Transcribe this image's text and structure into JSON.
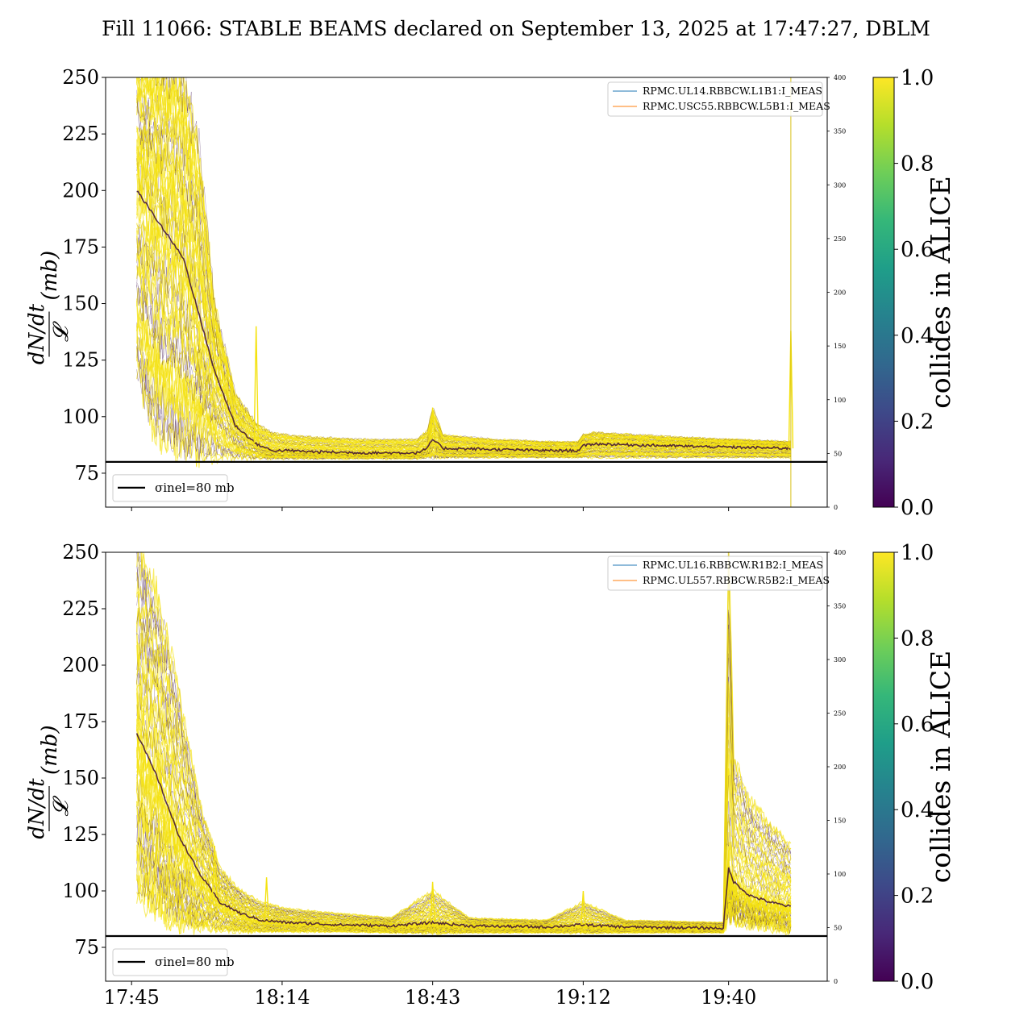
{
  "title": "Fill 11066: STABLE BEAMS declared on September 13, 2025 at 17:47:27, DBLM",
  "colors": {
    "viridis": [
      "#440154",
      "#482878",
      "#3e4989",
      "#31688e",
      "#26828e",
      "#1f9e89",
      "#35b779",
      "#6ece58",
      "#b5de2b",
      "#fde725"
    ],
    "collide_hi": "#f4e20f",
    "collide_lo": "#3b0f4f",
    "dark_core": "#3a0b3a",
    "legend_blue": "#1f77b4",
    "legend_orange": "#ff7f0e",
    "current_trace": "#d8c21a",
    "threshold": "#000000"
  },
  "y_axis_label": {
    "numerator": "dN/dt",
    "denominator": "𝓛",
    "unit": "(mb)"
  },
  "colorbar": {
    "label": "collides in ALICE",
    "ticks": [
      "0.0",
      "0.2",
      "0.4",
      "0.6",
      "0.8",
      "1.0"
    ],
    "range": [
      0,
      1
    ]
  },
  "chart_data": [
    {
      "type": "line",
      "panel": "top",
      "x_ticks": [
        "17:45",
        "18:14",
        "18:43",
        "19:12",
        "19:40"
      ],
      "x_range": [
        "17:40",
        "19:59"
      ],
      "y_left_ticks": [
        "75",
        "100",
        "125",
        "150",
        "175",
        "200",
        "225",
        "250"
      ],
      "ylim_left": [
        60,
        250
      ],
      "y_right_ticks": [
        "0",
        "50",
        "100",
        "150",
        "200",
        "250",
        "300",
        "350",
        "400"
      ],
      "ylim_right": [
        0,
        400
      ],
      "legend_entries": [
        {
          "label": "RPMC.UL14.RBBCW.L1B1:I_MEAS",
          "color": "#1f77b4"
        },
        {
          "label": "RPMC.USC55.RBBCW.L5B1:I_MEAS",
          "color": "#ff7f0e"
        }
      ],
      "threshold": {
        "value": 80,
        "label": "σinel=80 mb"
      },
      "collision_rate_band": {
        "times": [
          "17:46",
          "17:49",
          "17:52",
          "17:55",
          "17:58",
          "18:01",
          "18:05",
          "18:09",
          "18:12",
          "18:15",
          "18:20",
          "18:30",
          "18:40",
          "18:42",
          "18:43",
          "18:45",
          "18:55",
          "19:05",
          "19:11",
          "19:12",
          "19:14",
          "19:30",
          "19:40",
          "19:52"
        ],
        "upper": [
          265,
          260,
          255,
          250,
          220,
          150,
          110,
          97,
          93,
          92,
          91,
          90,
          90,
          94,
          104,
          92,
          90,
          89,
          89,
          92,
          93,
          91,
          90,
          89
        ],
        "median": [
          200,
          190,
          180,
          170,
          145,
          120,
          96,
          88,
          85,
          85,
          84.5,
          84,
          84,
          86,
          90,
          86,
          85.5,
          85,
          85,
          87,
          88,
          87,
          86.5,
          86
        ],
        "lower": [
          120,
          95,
          88,
          86,
          84,
          83,
          82,
          81.5,
          81.5,
          81.5,
          81.5,
          81.5,
          81.5,
          82,
          82,
          82,
          82,
          82,
          82,
          82,
          82,
          82,
          82,
          82
        ],
        "spikes": [
          {
            "time": "18:09",
            "value": 140
          },
          {
            "time": "18:43",
            "value": 104
          },
          {
            "time": "19:52",
            "value": 138
          }
        ]
      },
      "current_trace": {
        "times": [
          "17:45",
          "19:51",
          "19:52",
          "19:52"
        ],
        "values": [
          0,
          0,
          0,
          400
        ]
      }
    },
    {
      "type": "line",
      "panel": "bottom",
      "x_ticks": [
        "17:45",
        "18:14",
        "18:43",
        "19:12",
        "19:40"
      ],
      "x_range": [
        "17:40",
        "19:59"
      ],
      "y_left_ticks": [
        "75",
        "100",
        "125",
        "150",
        "175",
        "200",
        "225",
        "250"
      ],
      "ylim_left": [
        60,
        250
      ],
      "y_right_ticks": [
        "0",
        "50",
        "100",
        "150",
        "200",
        "250",
        "300",
        "350",
        "400"
      ],
      "ylim_right": [
        0,
        400
      ],
      "legend_entries": [
        {
          "label": "RPMC.UL16.RBBCW.R1B2:I_MEAS",
          "color": "#1f77b4"
        },
        {
          "label": "RPMC.UL557.RBBCW.R5B2:I_MEAS",
          "color": "#ff7f0e"
        }
      ],
      "threshold": {
        "value": 80,
        "label": "σinel=80 mb"
      },
      "collision_rate_band": {
        "times": [
          "17:46",
          "17:50",
          "17:54",
          "17:58",
          "18:02",
          "18:06",
          "18:10",
          "18:15",
          "18:25",
          "18:35",
          "18:43",
          "18:50",
          "19:05",
          "19:12",
          "19:20",
          "19:39",
          "19:40",
          "19:41",
          "19:44",
          "19:48",
          "19:52"
        ],
        "upper": [
          255,
          230,
          190,
          140,
          110,
          100,
          95,
          92,
          90,
          88,
          100,
          88,
          87,
          95,
          87,
          86,
          255,
          160,
          140,
          130,
          120
        ],
        "median": [
          170,
          150,
          125,
          108,
          95,
          90,
          87,
          86,
          85,
          84.5,
          86,
          84.5,
          84,
          85,
          84,
          83.5,
          110,
          104,
          98,
          95,
          93
        ],
        "lower": [
          100,
          92,
          86,
          84,
          83,
          82,
          82,
          82,
          82,
          81.5,
          81.5,
          81.5,
          81.5,
          81.5,
          81.5,
          81.5,
          92,
          88,
          85,
          84,
          82
        ],
        "spikes": [
          {
            "time": "18:01",
            "value": 120
          },
          {
            "time": "18:11",
            "value": 106
          },
          {
            "time": "18:43",
            "value": 104
          },
          {
            "time": "19:12",
            "value": 100
          }
        ]
      },
      "current_trace": {
        "times": [
          "17:45",
          "19:52"
        ],
        "values": [
          0,
          0
        ]
      }
    }
  ]
}
